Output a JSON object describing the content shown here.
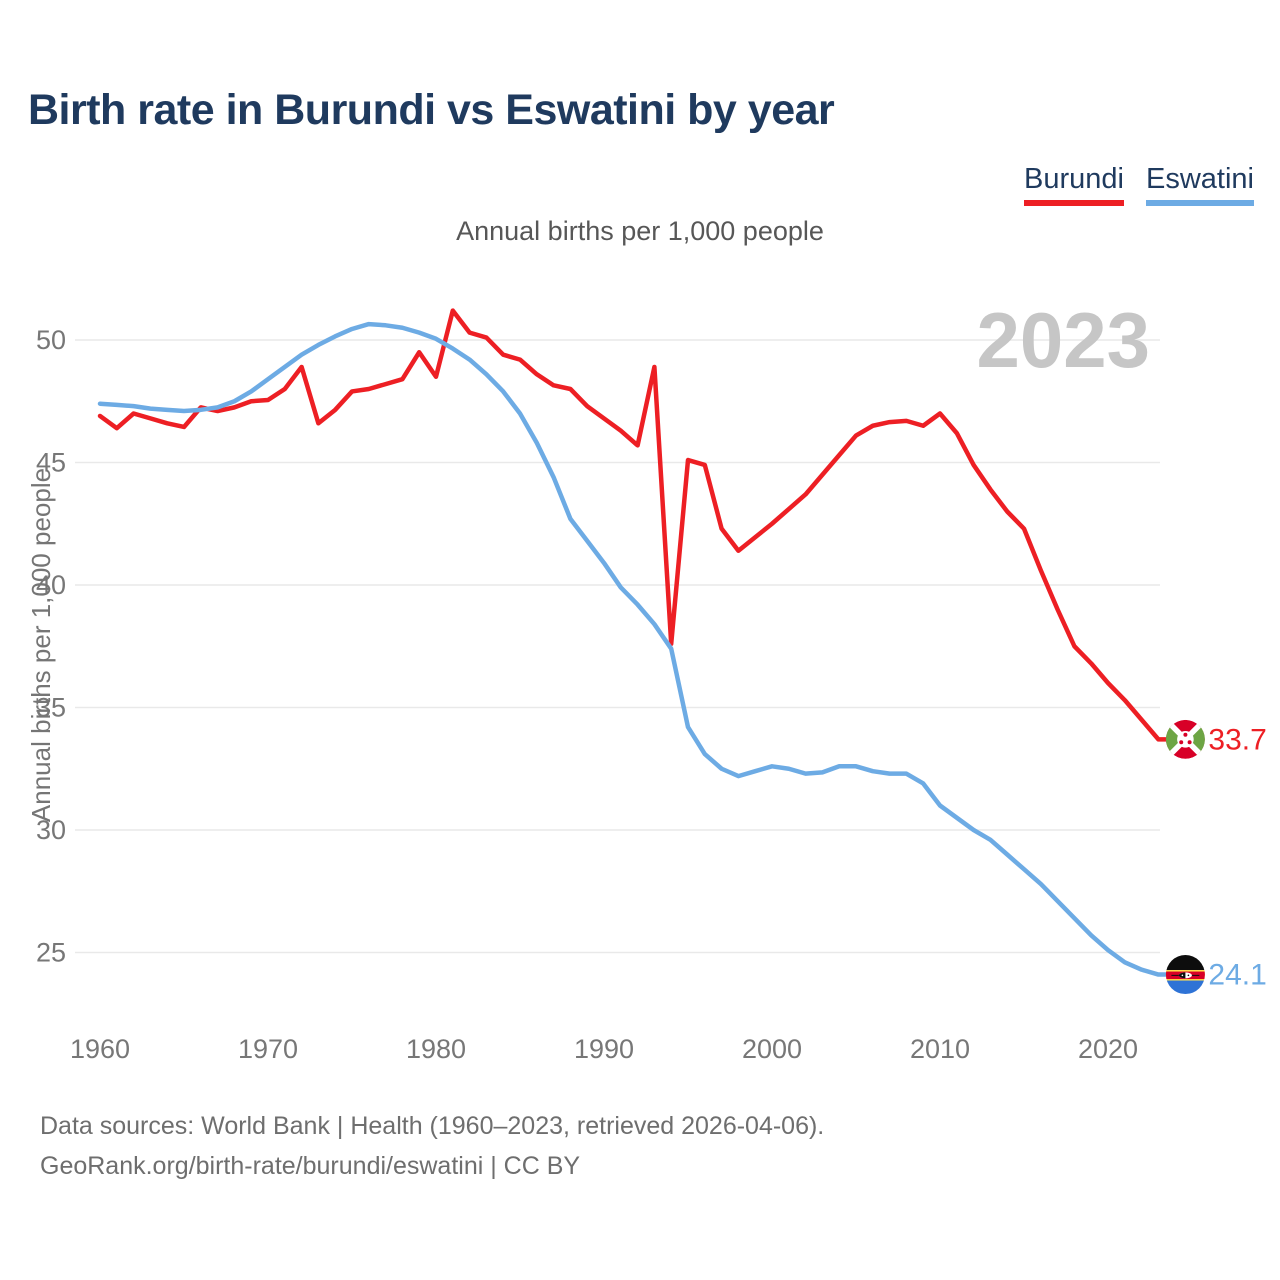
{
  "header": {
    "title": "Birth rate in Burundi vs Eswatini by year"
  },
  "legend": {
    "items": [
      {
        "label": "Burundi",
        "color": "#ed1f24"
      },
      {
        "label": "Eswatini",
        "color": "#6dabe4"
      }
    ]
  },
  "chart": {
    "subtitle": "Annual births per 1,000 people",
    "y_axis_title": "Annual births per 1,000 people",
    "watermark": "2023"
  },
  "chart_data": {
    "type": "line",
    "title": "Birth rate in Burundi vs Eswatini by year",
    "subtitle": "Annual births per 1,000 people",
    "xlabel": "",
    "ylabel": "Annual births per 1,000 people",
    "x_domain": [
      1960,
      2023
    ],
    "x_step": 1,
    "x_ticks": [
      1960,
      1970,
      1980,
      1990,
      2000,
      2010,
      2020
    ],
    "y_ticks": [
      25,
      30,
      35,
      40,
      45,
      50
    ],
    "ylim": [
      23.5,
      52
    ],
    "grid": true,
    "legend_position": "top-right",
    "series": [
      {
        "name": "Burundi",
        "color": "#ed1f24",
        "flag": "burundi",
        "end_label": "33.7",
        "end_value": 33.7,
        "values": [
          46.9,
          46.4,
          47.0,
          46.8,
          46.6,
          46.45,
          47.25,
          47.1,
          47.25,
          47.5,
          47.55,
          48.0,
          48.9,
          46.6,
          47.15,
          47.9,
          48.0,
          48.2,
          48.4,
          49.5,
          48.5,
          51.2,
          50.3,
          50.1,
          49.4,
          49.2,
          48.6,
          48.15,
          48.0,
          47.3,
          46.8,
          46.3,
          45.7,
          48.9,
          37.6,
          45.1,
          44.9,
          42.3,
          41.4,
          41.95,
          42.5,
          43.1,
          43.7,
          44.5,
          45.3,
          46.1,
          46.5,
          46.65,
          46.7,
          46.5,
          47.0,
          46.2,
          44.9,
          43.9,
          43.0,
          42.3,
          40.6,
          39.0,
          37.5,
          36.8,
          36.0,
          35.3,
          34.5,
          33.7
        ]
      },
      {
        "name": "Eswatini",
        "color": "#6dabe4",
        "flag": "eswatini",
        "end_label": "24.1",
        "end_value": 24.1,
        "values": [
          47.4,
          47.35,
          47.3,
          47.2,
          47.15,
          47.1,
          47.15,
          47.25,
          47.5,
          47.9,
          48.4,
          48.9,
          49.4,
          49.8,
          50.15,
          50.45,
          50.65,
          50.6,
          50.5,
          50.3,
          50.05,
          49.65,
          49.2,
          48.6,
          47.9,
          47.0,
          45.8,
          44.4,
          42.7,
          41.8,
          40.9,
          39.9,
          39.2,
          38.4,
          37.4,
          34.2,
          33.1,
          32.5,
          32.2,
          32.4,
          32.6,
          32.5,
          32.3,
          32.35,
          32.6,
          32.6,
          32.4,
          32.3,
          32.3,
          31.9,
          31.0,
          30.5,
          30.0,
          29.6,
          29.0,
          28.4,
          27.8,
          27.1,
          26.4,
          25.7,
          25.1,
          24.6,
          24.3,
          24.1
        ]
      }
    ]
  },
  "flags": {
    "burundi": {
      "red": "#d80027",
      "green": "#6da544",
      "white": "#ffffff"
    },
    "eswatini": {
      "black": "#0d0d0d",
      "blue": "#2e73d6",
      "red": "#d80027",
      "yellow": "#ffda44",
      "white": "#ffffff"
    }
  },
  "style": {
    "grid_color": "#e9e9e9",
    "tick_color": "#777777",
    "axis_title_color": "#757575",
    "watermark_color": "#c6c6c6"
  },
  "footer": {
    "line1": "Data sources: World Bank | Health (1960–2023, retrieved 2026-04-06).",
    "line2": "GeoRank.org/birth-rate/burundi/eswatini | CC BY"
  }
}
